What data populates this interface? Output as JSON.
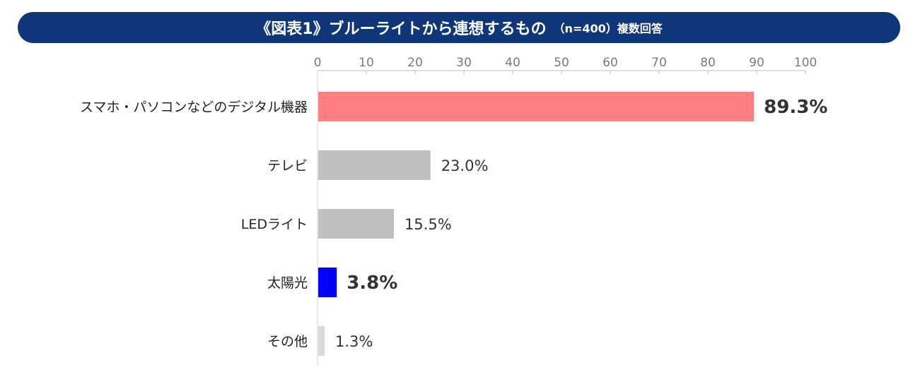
{
  "title": {
    "main": "《図表1》ブルーライトから連想するもの",
    "sub": "（n=400）複数回答"
  },
  "colors": {
    "title_bg": "#0e3679",
    "bar_highlight_red": "#ff7f83",
    "bar_highlight_blue": "#0000ff",
    "bar_default": "#c0c0c0",
    "bar_other": "#d9d9d9",
    "label_red": "#e0141e",
    "label_blue": "#0000ff",
    "label_default": "#333333"
  },
  "chart_data": {
    "type": "bar",
    "orientation": "horizontal",
    "title": "《図表1》ブルーライトから連想するもの",
    "xlim": [
      0,
      100
    ],
    "xticks": [
      "0",
      "10",
      "20",
      "30",
      "40",
      "50",
      "60",
      "70",
      "80",
      "90",
      "100"
    ],
    "grid": false,
    "categories": [
      "スマホ・パソコンなどのデジタル機器",
      "テレビ",
      "LEDライト",
      "太陽光",
      "その他"
    ],
    "values": [
      89.3,
      23.0,
      15.5,
      3.8,
      1.3
    ],
    "value_labels": [
      "89.3%",
      "23.0%",
      "15.5%",
      "3.8%",
      "1.3%"
    ]
  }
}
